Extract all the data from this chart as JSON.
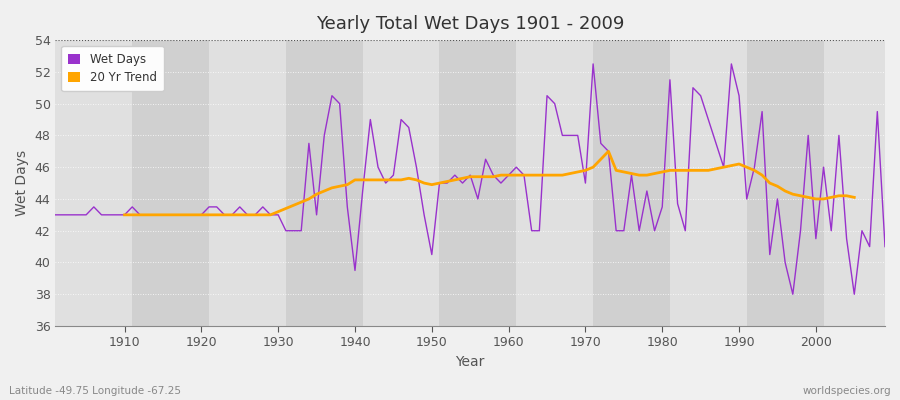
{
  "title": "Yearly Total Wet Days 1901 - 2009",
  "xlabel": "Year",
  "ylabel": "Wet Days",
  "fig_bg_color": "#f0f0f0",
  "plot_bg_color": "#d8d8d8",
  "stripe_light": "#e0e0e0",
  "stripe_dark": "#d0d0d0",
  "wet_days_color": "#9932CC",
  "trend_color": "#FFA500",
  "legend_labels": [
    "Wet Days",
    "20 Yr Trend"
  ],
  "subtitle_left": "Latitude -49.75 Longitude -67.25",
  "subtitle_right": "worldspecies.org",
  "ylim": [
    36,
    54
  ],
  "yticks": [
    36,
    38,
    40,
    42,
    44,
    46,
    48,
    50,
    52,
    54
  ],
  "xticks": [
    1910,
    1920,
    1930,
    1940,
    1950,
    1960,
    1970,
    1980,
    1990,
    2000
  ],
  "xlim": [
    1901,
    2009
  ],
  "years": [
    1901,
    1902,
    1903,
    1904,
    1905,
    1906,
    1907,
    1908,
    1909,
    1910,
    1911,
    1912,
    1913,
    1914,
    1915,
    1916,
    1917,
    1918,
    1919,
    1920,
    1921,
    1922,
    1923,
    1924,
    1925,
    1926,
    1927,
    1928,
    1929,
    1930,
    1931,
    1932,
    1933,
    1934,
    1935,
    1936,
    1937,
    1938,
    1939,
    1940,
    1941,
    1942,
    1943,
    1944,
    1945,
    1946,
    1947,
    1948,
    1949,
    1950,
    1951,
    1952,
    1953,
    1954,
    1955,
    1956,
    1957,
    1958,
    1959,
    1960,
    1961,
    1962,
    1963,
    1964,
    1965,
    1966,
    1967,
    1968,
    1969,
    1970,
    1971,
    1972,
    1973,
    1974,
    1975,
    1976,
    1977,
    1978,
    1979,
    1980,
    1981,
    1982,
    1983,
    1984,
    1985,
    1986,
    1987,
    1988,
    1989,
    1990,
    1991,
    1992,
    1993,
    1994,
    1995,
    1996,
    1997,
    1998,
    1999,
    2000,
    2001,
    2002,
    2003,
    2004,
    2005,
    2006,
    2007,
    2008,
    2009
  ],
  "wet_days": [
    43,
    43,
    43,
    43,
    43,
    43.5,
    43,
    43,
    43,
    43,
    43.5,
    43,
    43,
    43,
    43,
    43,
    43,
    43,
    43,
    43,
    43.5,
    43.5,
    43,
    43,
    43.5,
    43,
    43,
    43.5,
    43,
    43,
    42,
    42,
    42,
    47.5,
    43,
    48,
    50.5,
    50,
    43.5,
    39.5,
    44.5,
    49,
    46,
    45,
    45.5,
    49,
    48.5,
    46,
    43,
    40.5,
    45,
    45,
    45.5,
    45,
    45.5,
    44,
    46.5,
    45.5,
    45,
    45.5,
    46,
    45.5,
    42,
    42,
    50.5,
    50,
    48,
    48,
    48,
    45,
    52.5,
    47.5,
    47,
    42,
    42,
    45.5,
    42,
    44.5,
    42,
    43.5,
    51.5,
    43.7,
    42,
    51,
    50.5,
    49,
    47.5,
    46,
    52.5,
    50.5,
    44,
    46,
    49.5,
    40.5,
    44,
    40,
    38,
    42,
    48,
    41.5,
    46,
    42,
    48,
    41.5,
    38,
    42,
    41,
    49.5,
    41
  ],
  "trend": [
    null,
    null,
    null,
    null,
    null,
    null,
    null,
    null,
    null,
    43,
    43,
    43,
    43,
    43,
    43,
    43,
    43,
    43,
    43,
    43,
    43,
    43,
    43,
    43,
    43,
    43,
    43,
    43,
    43,
    43.2,
    43.4,
    43.6,
    43.8,
    44,
    44.3,
    44.5,
    44.7,
    44.8,
    44.9,
    45.2,
    45.2,
    45.2,
    45.2,
    45.2,
    45.2,
    45.2,
    45.3,
    45.2,
    45,
    44.9,
    45,
    45.1,
    45.2,
    45.3,
    45.4,
    45.4,
    45.4,
    45.4,
    45.5,
    45.5,
    45.5,
    45.5,
    45.5,
    45.5,
    45.5,
    45.5,
    45.5,
    45.6,
    45.7,
    45.8,
    46,
    46.5,
    47,
    45.8,
    45.7,
    45.6,
    45.5,
    45.5,
    45.6,
    45.7,
    45.8,
    45.8,
    45.8,
    45.8,
    45.8,
    45.8,
    45.9,
    46,
    46.1,
    46.2,
    46,
    45.8,
    45.5,
    45,
    44.8,
    44.5,
    44.3,
    44.2,
    44.1,
    44,
    44,
    44.1,
    44.2,
    44.2,
    44.1,
    null,
    null,
    null,
    null
  ]
}
